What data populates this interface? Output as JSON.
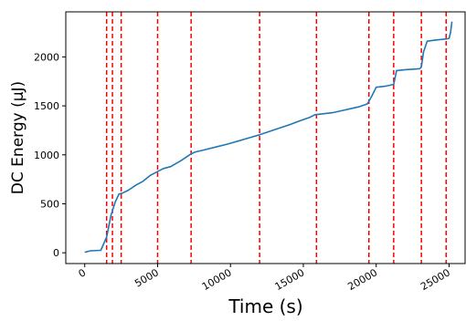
{
  "chart_data": {
    "type": "line",
    "title": "",
    "xlabel": "Time (s)",
    "ylabel": "DC Energy (μJ)",
    "xlim": [
      -1300,
      26100
    ],
    "ylim": [
      -110,
      2460
    ],
    "xticks": [
      0,
      5000,
      10000,
      15000,
      20000,
      25000
    ],
    "yticks": [
      0,
      500,
      1000,
      1500,
      2000
    ],
    "grid": false,
    "legend": "none",
    "line_color": "#1f77b4",
    "vline_color": "#ff0000",
    "series": [
      {
        "x": [
          0,
          400,
          1100,
          1500,
          1800,
          2100,
          2350,
          2600,
          3000,
          3500,
          4000,
          4500,
          5000,
          5400,
          5900,
          6600,
          7300,
          7600,
          8200,
          9000,
          9800,
          10500,
          11200,
          12000,
          12700,
          13400,
          14100,
          14800,
          15400,
          15800,
          16400,
          17000,
          17600,
          18200,
          18800,
          19400,
          19700,
          20000,
          20600,
          21200,
          21400,
          22000,
          22600,
          23000,
          23100,
          23250,
          23500,
          24000,
          24600,
          24900,
          25000,
          25100,
          25200
        ],
        "y": [
          5,
          20,
          25,
          160,
          380,
          520,
          600,
          610,
          640,
          690,
          730,
          790,
          830,
          860,
          880,
          940,
          1010,
          1030,
          1050,
          1080,
          1110,
          1140,
          1170,
          1205,
          1240,
          1275,
          1310,
          1350,
          1380,
          1410,
          1420,
          1430,
          1450,
          1470,
          1490,
          1520,
          1600,
          1690,
          1700,
          1720,
          1860,
          1870,
          1875,
          1880,
          1900,
          2050,
          2160,
          2170,
          2180,
          2185,
          2190,
          2250,
          2360
        ]
      }
    ],
    "vlines": [
      1500,
      1900,
      2500,
      5000,
      7300,
      12000,
      15900,
      19500,
      21200,
      23100,
      24800
    ]
  }
}
